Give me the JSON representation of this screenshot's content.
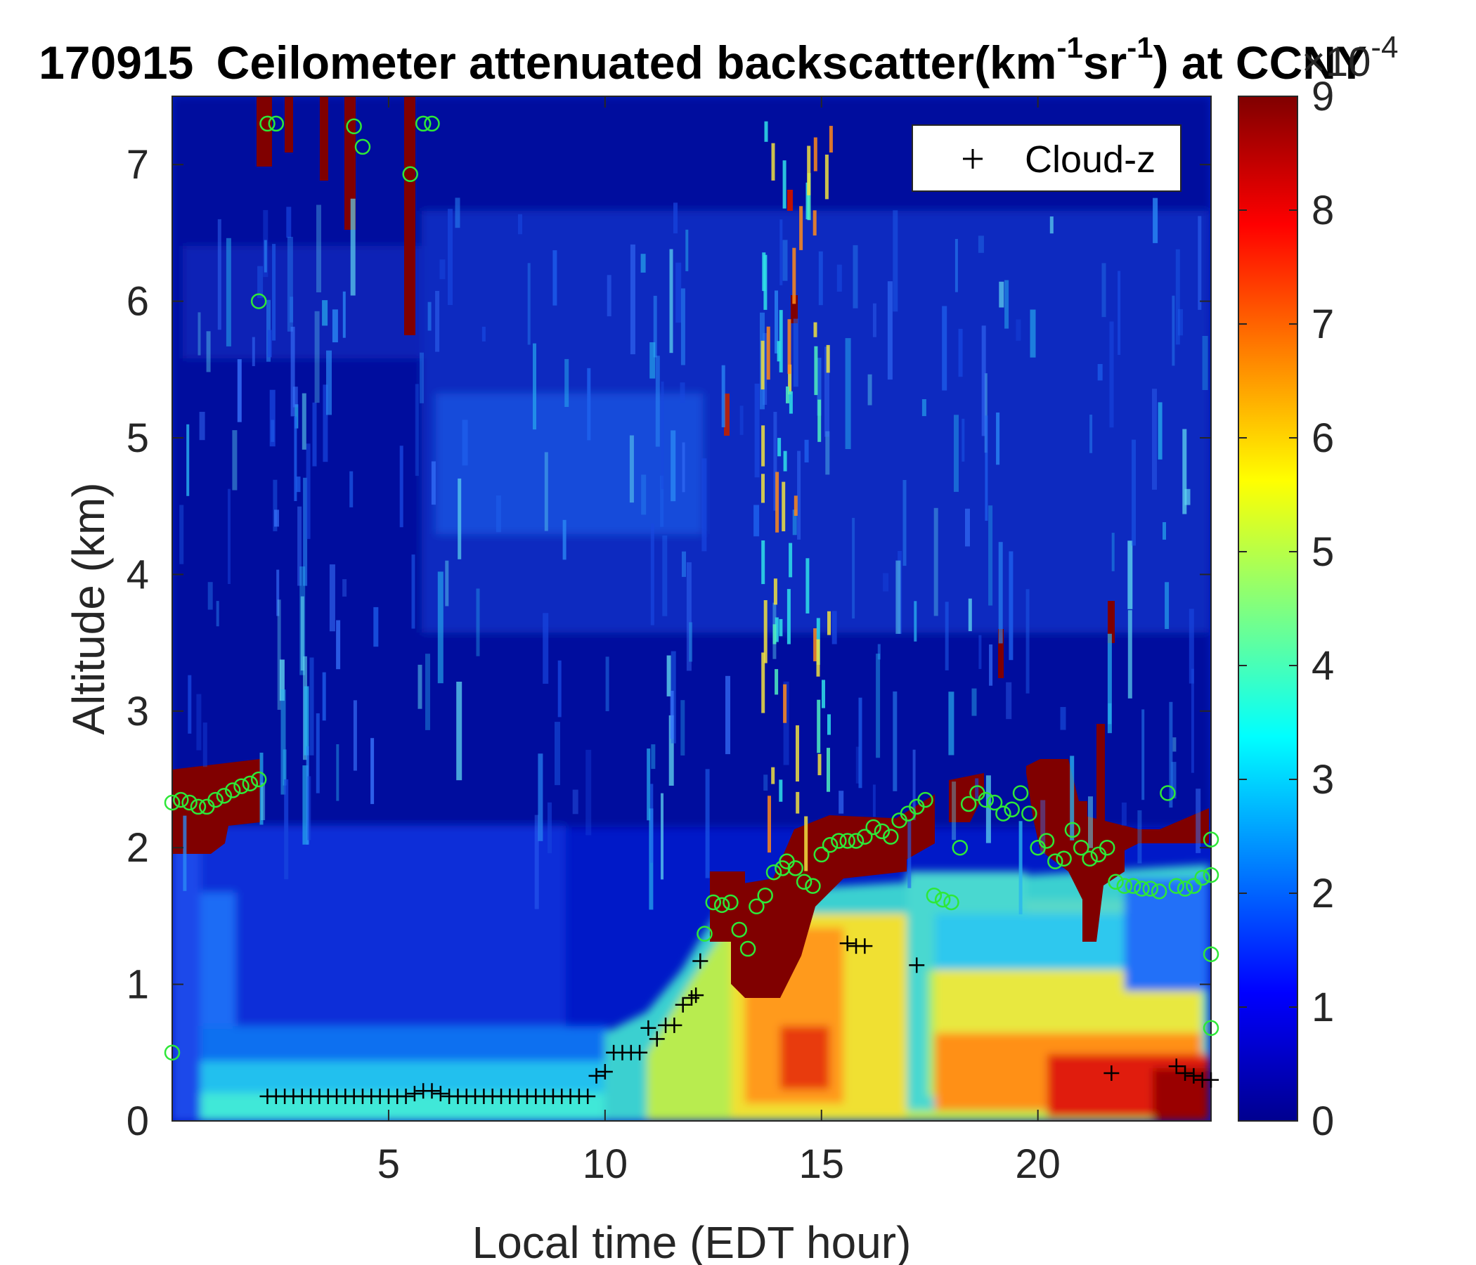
{
  "chart_data": {
    "type": "heatmap",
    "title": {
      "date": "170915",
      "pre": "Ceilometer attenuated backscatter(km",
      "sup1": "-1",
      "mid": "sr",
      "sup2": "-1",
      "post": ") at CCNY"
    },
    "xlabel": "Local time (EDT hour)",
    "ylabel": "Altitude (km)",
    "xlim": [
      0,
      24
    ],
    "ylim": [
      0,
      7.5
    ],
    "xticks": [
      5,
      10,
      15,
      20
    ],
    "yticks": [
      0,
      1,
      2,
      3,
      4,
      5,
      6,
      7
    ],
    "colorbar": {
      "min": 0,
      "max": 9,
      "ticks": [
        0,
        1,
        2,
        3,
        4,
        5,
        6,
        7,
        8,
        9
      ],
      "multiplier_base": "×10",
      "multiplier_exp": "-4",
      "colormap": "jet"
    },
    "legend": {
      "placement": "top-right",
      "entries": [
        {
          "marker": "+",
          "label": "Cloud-z"
        }
      ]
    },
    "cloud_z_points": [
      [
        2.2,
        0.18
      ],
      [
        2.4,
        0.18
      ],
      [
        2.6,
        0.18
      ],
      [
        2.8,
        0.18
      ],
      [
        3.0,
        0.18
      ],
      [
        3.2,
        0.18
      ],
      [
        3.4,
        0.18
      ],
      [
        3.6,
        0.18
      ],
      [
        3.8,
        0.18
      ],
      [
        4.0,
        0.18
      ],
      [
        4.2,
        0.18
      ],
      [
        4.4,
        0.18
      ],
      [
        4.6,
        0.18
      ],
      [
        4.8,
        0.18
      ],
      [
        5.0,
        0.18
      ],
      [
        5.2,
        0.18
      ],
      [
        5.4,
        0.18
      ],
      [
        5.6,
        0.2
      ],
      [
        5.8,
        0.22
      ],
      [
        6.0,
        0.22
      ],
      [
        6.2,
        0.2
      ],
      [
        6.4,
        0.18
      ],
      [
        6.6,
        0.18
      ],
      [
        6.8,
        0.18
      ],
      [
        7.0,
        0.18
      ],
      [
        7.2,
        0.18
      ],
      [
        7.4,
        0.18
      ],
      [
        7.6,
        0.18
      ],
      [
        7.8,
        0.18
      ],
      [
        8.0,
        0.18
      ],
      [
        8.2,
        0.18
      ],
      [
        8.4,
        0.18
      ],
      [
        8.6,
        0.18
      ],
      [
        8.8,
        0.18
      ],
      [
        9.0,
        0.18
      ],
      [
        9.2,
        0.18
      ],
      [
        9.4,
        0.18
      ],
      [
        9.6,
        0.18
      ],
      [
        9.8,
        0.33
      ],
      [
        10.0,
        0.36
      ],
      [
        10.2,
        0.5
      ],
      [
        10.4,
        0.5
      ],
      [
        10.6,
        0.5
      ],
      [
        10.8,
        0.5
      ],
      [
        11.0,
        0.68
      ],
      [
        11.2,
        0.6
      ],
      [
        11.4,
        0.7
      ],
      [
        11.6,
        0.7
      ],
      [
        11.8,
        0.85
      ],
      [
        12.0,
        0.9
      ],
      [
        12.1,
        0.92
      ],
      [
        12.2,
        1.17
      ],
      [
        15.6,
        1.3
      ],
      [
        15.8,
        1.28
      ],
      [
        16.0,
        1.28
      ],
      [
        17.2,
        1.14
      ],
      [
        21.7,
        0.35
      ],
      [
        23.2,
        0.4
      ],
      [
        23.4,
        0.35
      ],
      [
        23.6,
        0.33
      ],
      [
        23.8,
        0.3
      ],
      [
        24.0,
        0.3
      ]
    ],
    "pbl_circle_points": [
      [
        0.0,
        0.5
      ],
      [
        0.0,
        2.33
      ],
      [
        0.2,
        2.35
      ],
      [
        0.4,
        2.33
      ],
      [
        0.6,
        2.3
      ],
      [
        0.8,
        2.3
      ],
      [
        1.0,
        2.35
      ],
      [
        1.2,
        2.38
      ],
      [
        1.4,
        2.42
      ],
      [
        1.6,
        2.45
      ],
      [
        1.8,
        2.47
      ],
      [
        2.0,
        2.5
      ],
      [
        2.0,
        6.0
      ],
      [
        2.2,
        7.3
      ],
      [
        2.4,
        7.3
      ],
      [
        4.2,
        7.28
      ],
      [
        4.4,
        7.13
      ],
      [
        5.5,
        6.93
      ],
      [
        5.8,
        7.3
      ],
      [
        6.0,
        7.3
      ],
      [
        12.3,
        1.37
      ],
      [
        12.5,
        1.6
      ],
      [
        12.7,
        1.58
      ],
      [
        12.9,
        1.6
      ],
      [
        13.1,
        1.4
      ],
      [
        13.3,
        1.26
      ],
      [
        13.5,
        1.57
      ],
      [
        13.7,
        1.65
      ],
      [
        13.9,
        1.82
      ],
      [
        14.1,
        1.85
      ],
      [
        14.2,
        1.9
      ],
      [
        14.4,
        1.85
      ],
      [
        14.6,
        1.75
      ],
      [
        14.8,
        1.72
      ],
      [
        15.0,
        1.95
      ],
      [
        15.2,
        2.02
      ],
      [
        15.4,
        2.05
      ],
      [
        15.6,
        2.05
      ],
      [
        15.8,
        2.05
      ],
      [
        16.0,
        2.08
      ],
      [
        16.2,
        2.15
      ],
      [
        16.4,
        2.12
      ],
      [
        16.6,
        2.08
      ],
      [
        16.8,
        2.2
      ],
      [
        17.0,
        2.25
      ],
      [
        17.2,
        2.3
      ],
      [
        17.4,
        2.35
      ],
      [
        17.6,
        1.65
      ],
      [
        17.8,
        1.62
      ],
      [
        18.0,
        1.6
      ],
      [
        18.2,
        2.0
      ],
      [
        18.4,
        2.32
      ],
      [
        18.6,
        2.4
      ],
      [
        18.8,
        2.35
      ],
      [
        19.0,
        2.33
      ],
      [
        19.2,
        2.25
      ],
      [
        19.4,
        2.28
      ],
      [
        19.6,
        2.4
      ],
      [
        19.8,
        2.25
      ],
      [
        20.0,
        2.0
      ],
      [
        20.2,
        2.05
      ],
      [
        20.4,
        1.9
      ],
      [
        20.6,
        1.92
      ],
      [
        20.8,
        2.13
      ],
      [
        21.0,
        2.0
      ],
      [
        21.2,
        1.92
      ],
      [
        21.4,
        1.95
      ],
      [
        21.6,
        2.0
      ],
      [
        21.8,
        1.75
      ],
      [
        22.0,
        1.72
      ],
      [
        22.2,
        1.72
      ],
      [
        22.4,
        1.7
      ],
      [
        22.6,
        1.7
      ],
      [
        22.8,
        1.68
      ],
      [
        23.0,
        2.4
      ],
      [
        23.2,
        1.72
      ],
      [
        23.4,
        1.7
      ],
      [
        23.6,
        1.72
      ],
      [
        23.8,
        1.78
      ],
      [
        24.0,
        1.8
      ],
      [
        24.0,
        2.06
      ],
      [
        24.0,
        1.22
      ],
      [
        24.0,
        0.68
      ]
    ]
  }
}
